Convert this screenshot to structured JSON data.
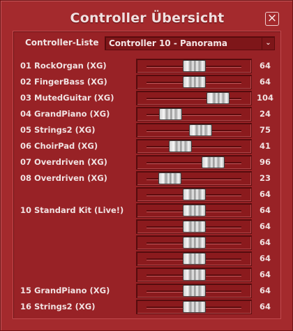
{
  "window": {
    "title": "Controller Übersicht",
    "close_glyph": "×"
  },
  "controller_select": {
    "label": "Controller-Liste",
    "value": "Controller 10 - Panorama",
    "arrow_glyph": "⌄"
  },
  "slider_range": {
    "min": 0,
    "max": 127
  },
  "channels": [
    {
      "name": "01 RockOrgan (XG)",
      "value": 64
    },
    {
      "name": "02 FingerBass (XG)",
      "value": 64
    },
    {
      "name": "03 MutedGuitar (XG)",
      "value": 104
    },
    {
      "name": "04 GrandPiano (XG)",
      "value": 24
    },
    {
      "name": "05 Strings2 (XG)",
      "value": 75
    },
    {
      "name": "06 ChoirPad (XG)",
      "value": 41
    },
    {
      "name": "07 Overdriven (XG)",
      "value": 96
    },
    {
      "name": "08 Overdriven (XG)",
      "value": 23
    },
    {
      "name": "",
      "value": 64
    },
    {
      "name": "10 Standard Kit (Live!)",
      "value": 64
    },
    {
      "name": "",
      "value": 64
    },
    {
      "name": "",
      "value": 64
    },
    {
      "name": "",
      "value": 64
    },
    {
      "name": "",
      "value": 64
    },
    {
      "name": "15 GrandPiano (XG)",
      "value": 64
    },
    {
      "name": "16 Strings2 (XG)",
      "value": 64
    }
  ]
}
